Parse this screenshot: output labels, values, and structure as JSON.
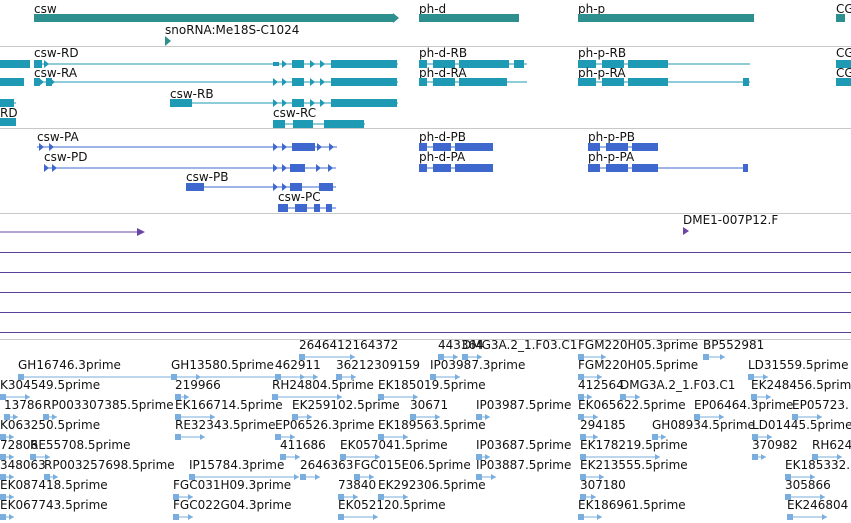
{
  "colors": {
    "gene": "#2e8f8f",
    "transcript": "#1e9ab4",
    "protein": "#3f68cf",
    "clone": "#6a45a6",
    "est": "#7aaede",
    "separator": "#c8c8c8",
    "clone_line": "#5a4094"
  },
  "tracks": {
    "genes": [
      {
        "label": "csw"
      },
      {
        "label": "snoRNA:Me18S-C1024"
      },
      {
        "label": "ph-d"
      },
      {
        "label": "ph-p"
      },
      {
        "label": "CG"
      }
    ],
    "transcripts": [
      {
        "label": "csw-RD"
      },
      {
        "label": "csw-RA"
      },
      {
        "label": "csw-RB"
      },
      {
        "label": "RD"
      },
      {
        "label": "csw-RC"
      },
      {
        "label": "ph-d-RB"
      },
      {
        "label": "ph-d-RA"
      },
      {
        "label": "ph-p-RB"
      },
      {
        "label": "ph-p-RA"
      },
      {
        "label": "CG"
      },
      {
        "label": "CG"
      }
    ],
    "proteins": [
      {
        "label": "csw-PA"
      },
      {
        "label": "csw-PD"
      },
      {
        "label": "csw-PB"
      },
      {
        "label": "csw-PC"
      },
      {
        "label": "ph-d-PB"
      },
      {
        "label": "ph-d-PA"
      },
      {
        "label": "ph-p-PB"
      },
      {
        "label": "ph-p-PA"
      }
    ],
    "clones": [
      {
        "label": "DME1-007P12.F"
      }
    ],
    "ests": [
      "2646412164372",
      "443364",
      "DMG3A.2_1.F03.C1",
      "FGM220H05.3prime",
      "BP552981",
      "GH16746.3prime",
      "GH13580.5prime",
      "462911",
      "36212309159",
      "IP03987.3prime",
      "FGM220H05.5prime",
      "LD31559.5prime",
      "K304549.5prime",
      "219966",
      "RH24804.5prime",
      "EK185019.5prime",
      "412564",
      "DMG3A.2_1.F03.C1",
      "EK248456.5prime",
      "13786",
      "RP003307385.5prime",
      "EK166714.5prime",
      "EK259102.5prime",
      "30671",
      "IP03987.5prime",
      "EK065622.5prime",
      "EP06464.3prime",
      "EP05723.",
      "K063250.5prime",
      "RE32343.5prime",
      "EP06526.3prime",
      "EK189563.5prime",
      "294185",
      "GH08934.5prime",
      "LD01445.5prime",
      "72806",
      "RE55708.5prime",
      "411686",
      "EK057041.5prime",
      "IP03687.5prime",
      "EK178219.5prime",
      "370982",
      "RH624",
      "348063",
      "RP003257698.5prime",
      "IP15784.3prime",
      "2646363",
      "FGC015E06.5prime",
      "IP03887.5prime",
      "EK213555.5prime",
      "EK185332.",
      "EK087418.5prime",
      "FGC031H09.3prime",
      "73840",
      "EK292306.5prime",
      "307180",
      "305866",
      "EK067743.5prime",
      "FGC022G04.3prime",
      "EK052120.5prime",
      "EK186961.5prime",
      "EK246804"
    ]
  }
}
